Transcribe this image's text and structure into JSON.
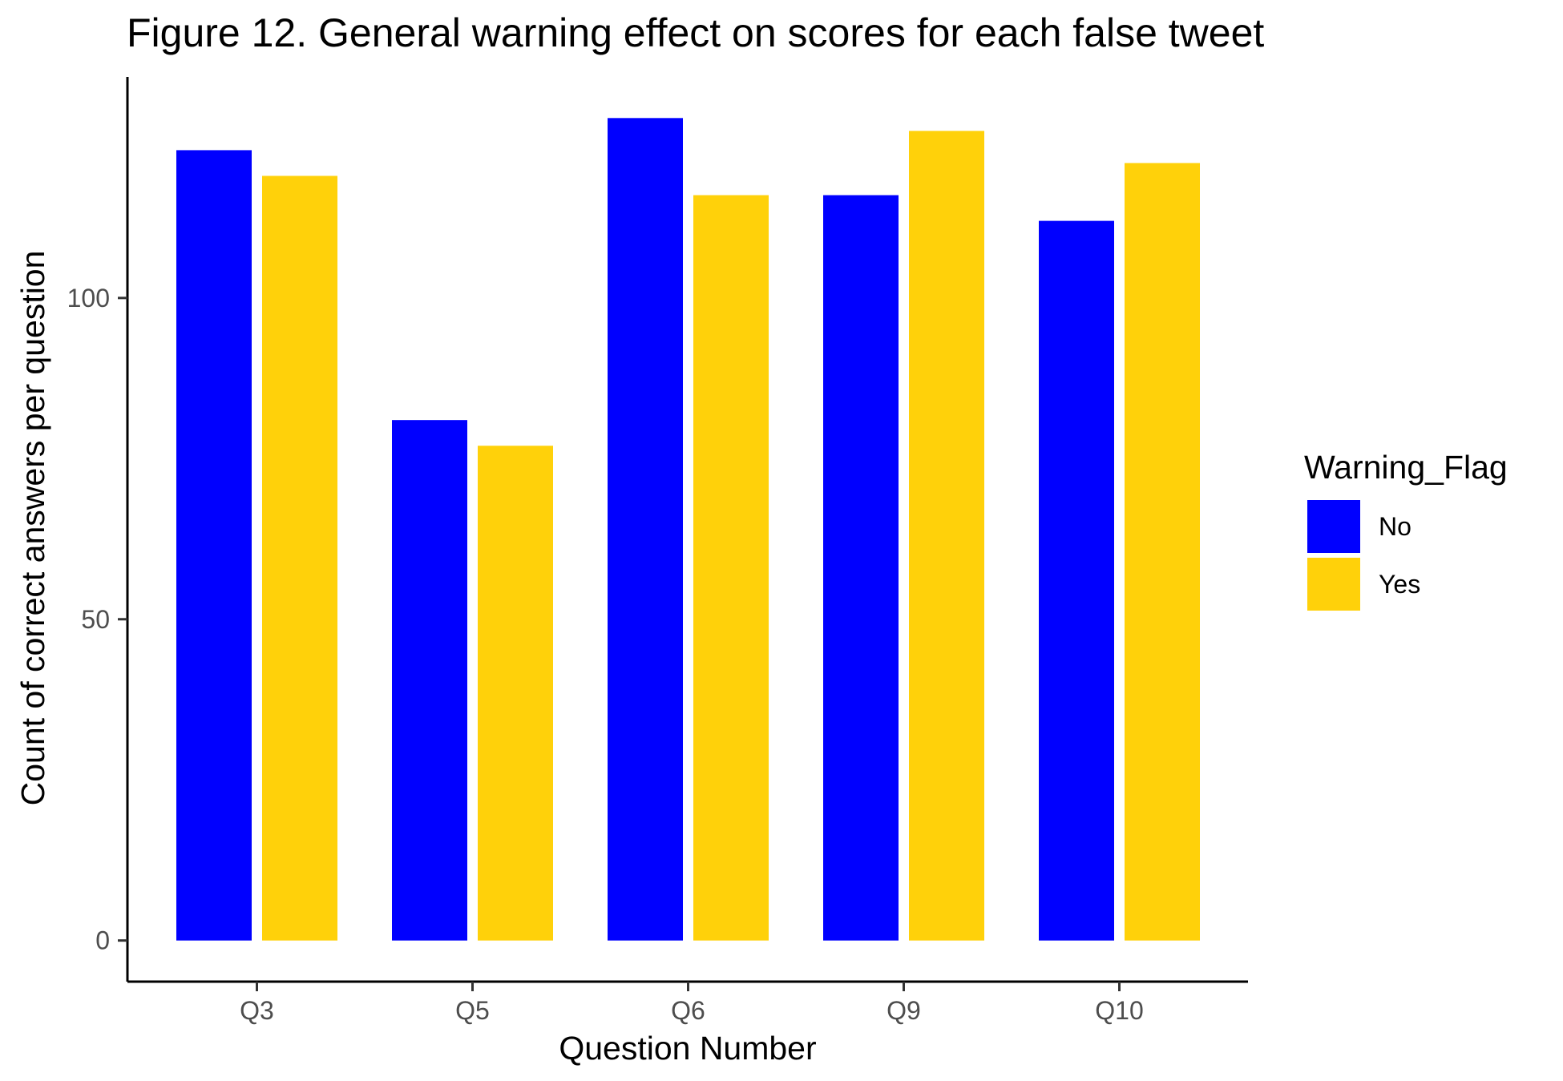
{
  "chart_data": {
    "type": "bar",
    "title": "Figure 12. General warning effect on scores for each false tweet",
    "xlabel": "Question Number",
    "ylabel": "Count of correct answers per question",
    "categories": [
      "Q3",
      "Q5",
      "Q6",
      "Q9",
      "Q10"
    ],
    "series": [
      {
        "name": "No",
        "color": "#0000ff",
        "values": [
          123,
          81,
          128,
          116,
          112
        ]
      },
      {
        "name": "Yes",
        "color": "#ffd10a",
        "values": [
          119,
          77,
          116,
          126,
          121
        ]
      }
    ],
    "yticks": [
      0,
      50,
      100
    ],
    "ytick_labels": [
      "0",
      "50",
      "100"
    ],
    "ylim": [
      -6.4,
      134.4
    ],
    "grid": false,
    "legend": {
      "title": "Warning_Flag",
      "position": "right",
      "items": [
        "No",
        "Yes"
      ]
    }
  }
}
